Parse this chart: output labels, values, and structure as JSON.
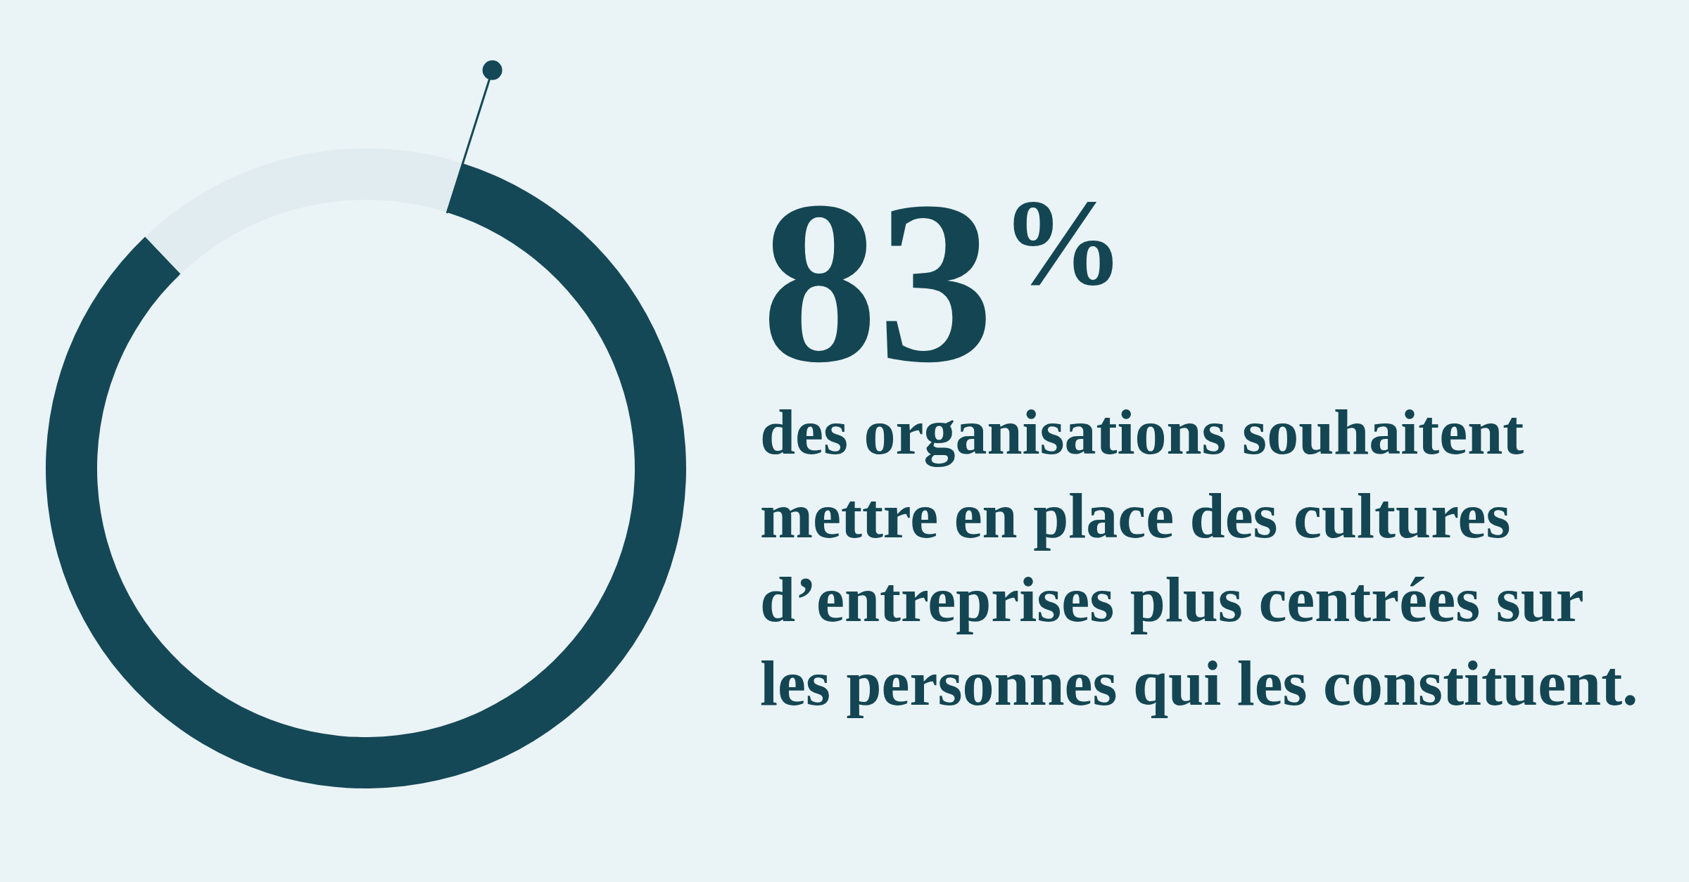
{
  "chart_data": {
    "type": "donut",
    "title": "83$^{%}$",
    "subtitle": "des organisations souhaitent\nmettre en place des cultures\nd’entreprises plus centrées sur\nles personnes qui les constituent.",
    "categories": [
      null,
      null
    ],
    "values": [
      83,
      17
    ],
    "colors": [
      "#154856",
      "#e1ecf0"
    ]
  }
}
